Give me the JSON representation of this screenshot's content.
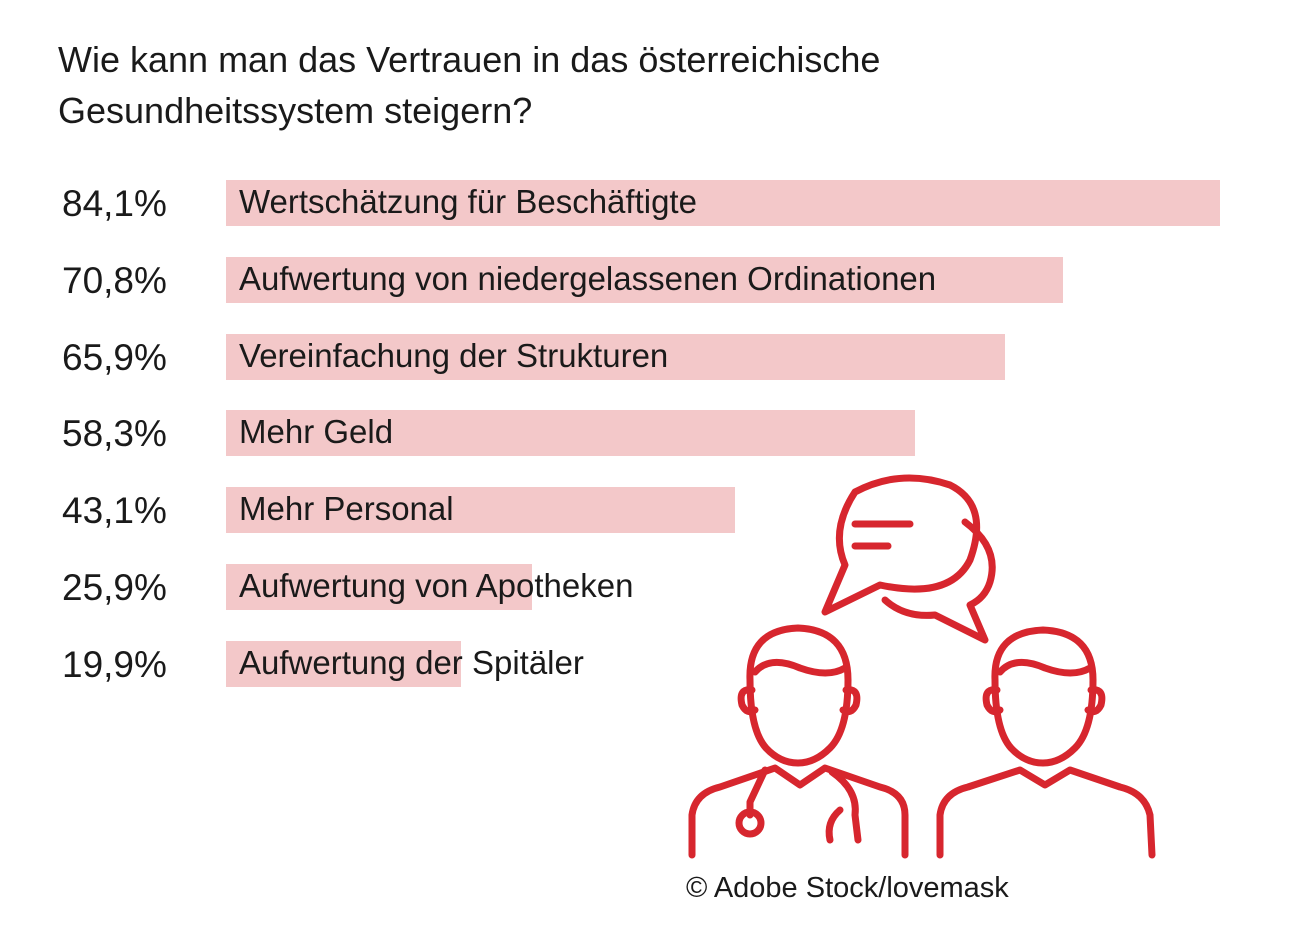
{
  "title": "Wie kann man das Vertrauen in das österreichische Gesundheitssystem steigern?",
  "accent_color": "#d7262e",
  "bar_color": "#f3c8c9",
  "chart_data": {
    "type": "bar",
    "orientation": "horizontal",
    "title": "Wie kann man das Vertrauen in das österreichische Gesundheitssystem steigern?",
    "categories": [
      "Wertschätzung für Beschäftigte",
      "Aufwertung von niedergelassenen Ordinationen",
      "Vereinfachung der Strukturen",
      "Mehr Geld",
      "Mehr Personal",
      "Aufwertung von Apotheken",
      "Aufwertung der Spitäler"
    ],
    "values": [
      84.1,
      70.8,
      65.9,
      58.3,
      43.1,
      25.9,
      19.9
    ],
    "value_labels": [
      "84,1%",
      "70,8%",
      "65,9%",
      "58,3%",
      "43,1%",
      "25,9%",
      "19,9%"
    ],
    "xlim": [
      0,
      84.1
    ],
    "grid": false,
    "legend": "none"
  },
  "illustration": {
    "icon": "doctor-patient-conversation-icon",
    "credit": "© Adobe Stock/lovemask"
  }
}
